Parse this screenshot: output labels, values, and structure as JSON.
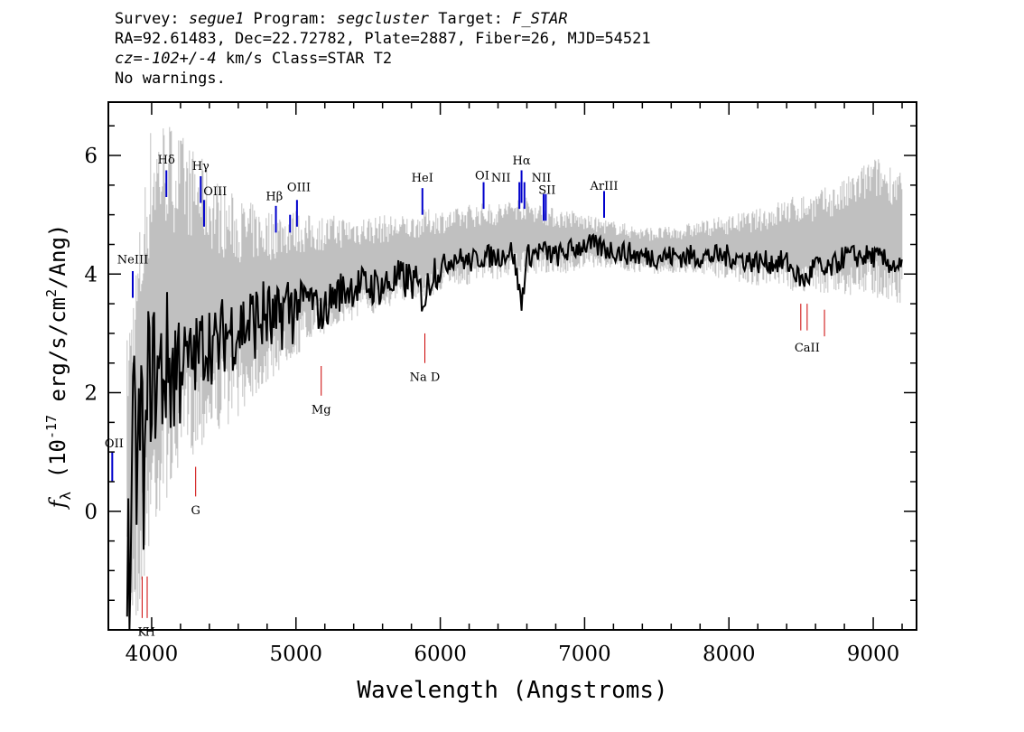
{
  "header": {
    "line1": {
      "survey_label": "Survey: ",
      "survey": "segue1",
      "program_label": " Program: ",
      "program": "segcluster",
      "target_label": " Target: ",
      "target": "F_STAR"
    },
    "line2": "RA=92.61483, Dec=22.72782, Plate=2887, Fiber=26, MJD=54521",
    "line3": {
      "cz_label": "cz=",
      "cz_value": "-102+/-4",
      "rest": " km/s Class=STAR T2"
    },
    "line4": "No warnings."
  },
  "chart_data": {
    "type": "line",
    "xlabel": "Wavelength (Angstroms)",
    "ylabel_prefix": "f",
    "ylabel_sub": "λ",
    "ylabel_unit_pre": " (10",
    "ylabel_exp": "-17",
    "ylabel_unit_mid": " erg/s/cm",
    "ylabel_exp2": "2",
    "ylabel_unit_post": "/Ang)",
    "xlim": [
      3700,
      9300
    ],
    "ylim": [
      -2,
      6.9
    ],
    "xticks": [
      4000,
      5000,
      6000,
      7000,
      8000,
      9000
    ],
    "xtick_labels": [
      "4000",
      "5000",
      "6000",
      "7000",
      "8000",
      "9000"
    ],
    "yticks": [
      0,
      2,
      4,
      6
    ],
    "ytick_labels": [
      "0",
      "2",
      "4",
      "6"
    ],
    "series": [
      {
        "role": "noise",
        "color": "#c0c0c0",
        "x": [
          3830,
          3900,
          4000,
          4100,
          4200,
          4300,
          4400,
          4500,
          4600,
          4700,
          4800,
          4900,
          5000,
          5100,
          5200,
          5300,
          5400,
          5500,
          5600,
          5700,
          5800,
          5900,
          6000,
          6100,
          6200,
          6300,
          6400,
          6500,
          6600,
          6700,
          6800,
          6900,
          7000,
          7200,
          7400,
          7600,
          7800,
          8000,
          8200,
          8400,
          8600,
          8800,
          9000,
          9200
        ],
        "y_low": [
          -1.9,
          -1.9,
          -0.5,
          0.2,
          0.6,
          1.0,
          1.2,
          1.4,
          1.6,
          1.9,
          2.1,
          2.4,
          2.6,
          2.8,
          3.0,
          3.1,
          3.2,
          3.3,
          3.4,
          3.5,
          3.6,
          3.6,
          3.7,
          3.8,
          3.8,
          3.9,
          3.9,
          4.0,
          4.0,
          4.0,
          4.0,
          4.0,
          4.1,
          4.1,
          4.0,
          4.0,
          4.0,
          3.9,
          3.8,
          3.7,
          3.7,
          3.6,
          3.6,
          3.5
        ],
        "y_high": [
          3.0,
          4.5,
          6.7,
          6.7,
          6.4,
          6.1,
          5.8,
          5.5,
          5.3,
          5.2,
          5.1,
          5.1,
          5.1,
          5.0,
          5.0,
          5.0,
          5.0,
          5.0,
          5.0,
          5.0,
          5.0,
          5.1,
          5.1,
          5.1,
          5.2,
          5.2,
          5.2,
          5.3,
          5.3,
          5.2,
          5.1,
          5.1,
          5.0,
          4.9,
          4.8,
          4.8,
          4.9,
          5.0,
          5.1,
          5.3,
          5.4,
          5.6,
          6.0,
          5.8
        ]
      },
      {
        "role": "flux",
        "color": "#000000",
        "x": [
          3830,
          3850,
          3875,
          3900,
          3925,
          3950,
          3975,
          4000,
          4050,
          4100,
          4150,
          4200,
          4250,
          4300,
          4350,
          4400,
          4450,
          4500,
          4600,
          4700,
          4800,
          4861,
          4900,
          5000,
          5100,
          5175,
          5250,
          5300,
          5400,
          5500,
          5600,
          5700,
          5800,
          5893,
          5950,
          6000,
          6100,
          6200,
          6300,
          6400,
          6500,
          6563,
          6600,
          6700,
          6800,
          6900,
          7000,
          7200,
          7400,
          7600,
          7800,
          8000,
          8200,
          8400,
          8498,
          8542,
          8600,
          8662,
          8800,
          9000,
          9100,
          9200
        ],
        "y": [
          -0.5,
          -1.2,
          1.5,
          0.6,
          1.8,
          0.2,
          2.2,
          2.4,
          2.2,
          2.5,
          2.4,
          2.6,
          2.5,
          2.6,
          2.8,
          2.9,
          2.7,
          3.0,
          3.1,
          3.2,
          3.3,
          3.0,
          3.4,
          3.5,
          3.6,
          3.3,
          3.6,
          3.7,
          3.8,
          3.8,
          3.8,
          3.9,
          3.9,
          3.6,
          4.1,
          4.1,
          4.3,
          4.2,
          4.3,
          4.3,
          4.4,
          3.5,
          4.3,
          4.4,
          4.3,
          4.4,
          4.5,
          4.4,
          4.3,
          4.3,
          4.3,
          4.3,
          4.2,
          4.2,
          3.9,
          3.9,
          4.2,
          4.0,
          4.3,
          4.3,
          4.2,
          4.1
        ]
      }
    ],
    "emission_lines": [
      {
        "label": "OII",
        "x": 3727,
        "y_bottom": 0.5,
        "y_top": 1.0,
        "label_y": 1.1
      },
      {
        "label": "NeIII",
        "x": 3869,
        "y_bottom": 3.6,
        "y_top": 4.05,
        "label_y": 4.15
      },
      {
        "label": "Hδ",
        "x": 4102,
        "y_bottom": 5.3,
        "y_top": 5.75,
        "label_y": 5.85
      },
      {
        "label": "Hγ",
        "x": 4340,
        "y_bottom": 5.2,
        "y_top": 5.65,
        "label_y": 5.75
      },
      {
        "label": "OIII",
        "x": 4363,
        "y_bottom": 4.8,
        "y_top": 5.25,
        "label_y": 5.35
      },
      {
        "label": "Hβ",
        "x": 4861,
        "y_bottom": 4.7,
        "y_top": 5.15,
        "label_y": 5.25
      },
      {
        "label": "OIII",
        "x": 4959,
        "y_bottom": 4.7,
        "y_top": 5.0,
        "label_y": 5.4
      },
      {
        "label": "OIII",
        "x": 5007,
        "y_bottom": 4.8,
        "y_top": 5.25,
        "label_y": 5.4
      },
      {
        "label": "HeI",
        "x": 5876,
        "y_bottom": 5.0,
        "y_top": 5.45,
        "label_y": 5.55
      },
      {
        "label": "OI",
        "x": 6300,
        "y_bottom": 5.1,
        "y_top": 5.55,
        "label_y": 5.6
      },
      {
        "label": "NII",
        "x": 6548,
        "y_bottom": 5.1,
        "y_top": 5.55,
        "label_y": 5.55
      },
      {
        "label": "Hα",
        "x": 6563,
        "y_bottom": 5.2,
        "y_top": 5.75,
        "label_y": 5.85
      },
      {
        "label": "NII",
        "x": 6583,
        "y_bottom": 5.1,
        "y_top": 5.55,
        "label_y": 5.55
      },
      {
        "label": "SII",
        "x": 6716,
        "y_bottom": 4.9,
        "y_top": 5.35,
        "label_y": 5.35
      },
      {
        "label": "SII",
        "x": 6731,
        "y_bottom": 4.9,
        "y_top": 5.35,
        "label_y": 5.35
      },
      {
        "label": "ArIII",
        "x": 7135,
        "y_bottom": 4.95,
        "y_top": 5.4,
        "label_y": 5.4
      }
    ],
    "emission_labels": [
      {
        "text": "OII",
        "x": 3740,
        "y": 1.08
      },
      {
        "text": "NeIII",
        "x": 3869,
        "y": 4.18
      },
      {
        "text": "Hδ",
        "x": 4102,
        "y": 5.86
      },
      {
        "text": "Hγ",
        "x": 4340,
        "y": 5.76
      },
      {
        "text": "OIII",
        "x": 4440,
        "y": 5.33
      },
      {
        "text": "Hβ",
        "x": 4850,
        "y": 5.25
      },
      {
        "text": "OIII",
        "x": 5020,
        "y": 5.4
      },
      {
        "text": "HeI",
        "x": 5876,
        "y": 5.56
      },
      {
        "text": "OI",
        "x": 6290,
        "y": 5.6
      },
      {
        "text": "NII",
        "x": 6420,
        "y": 5.56
      },
      {
        "text": "Hα",
        "x": 6563,
        "y": 5.85
      },
      {
        "text": "NII",
        "x": 6700,
        "y": 5.56
      },
      {
        "text": "SII",
        "x": 6740,
        "y": 5.35
      },
      {
        "text": "ArIII",
        "x": 7135,
        "y": 5.42
      }
    ],
    "absorption_lines": [
      {
        "x": 3934,
        "y_bottom": -1.8,
        "y_top": -1.1
      },
      {
        "x": 3969,
        "y_bottom": -1.8,
        "y_top": -1.1
      },
      {
        "x": 4305,
        "y_bottom": 0.25,
        "y_top": 0.75
      },
      {
        "x": 5175,
        "y_bottom": 1.95,
        "y_top": 2.45
      },
      {
        "x": 5893,
        "y_bottom": 2.5,
        "y_top": 3.0
      },
      {
        "x": 8498,
        "y_bottom": 3.05,
        "y_top": 3.5
      },
      {
        "x": 8542,
        "y_bottom": 3.05,
        "y_top": 3.5
      },
      {
        "x": 8662,
        "y_bottom": 2.95,
        "y_top": 3.4
      }
    ],
    "absorption_labels": [
      {
        "text": "K",
        "x": 3934,
        "y": -1.95
      },
      {
        "text": "H",
        "x": 3990,
        "y": -1.95
      },
      {
        "text": "G",
        "x": 4305,
        "y": 0.1
      },
      {
        "text": "Mg",
        "x": 5175,
        "y": 1.8
      },
      {
        "text": "Na D",
        "x": 5893,
        "y": 2.35
      },
      {
        "text": "CaII",
        "x": 8542,
        "y": 2.85
      }
    ],
    "emission_color": "#0000cc",
    "absorption_color": "#cc0000",
    "grid": false,
    "legend": "none"
  }
}
